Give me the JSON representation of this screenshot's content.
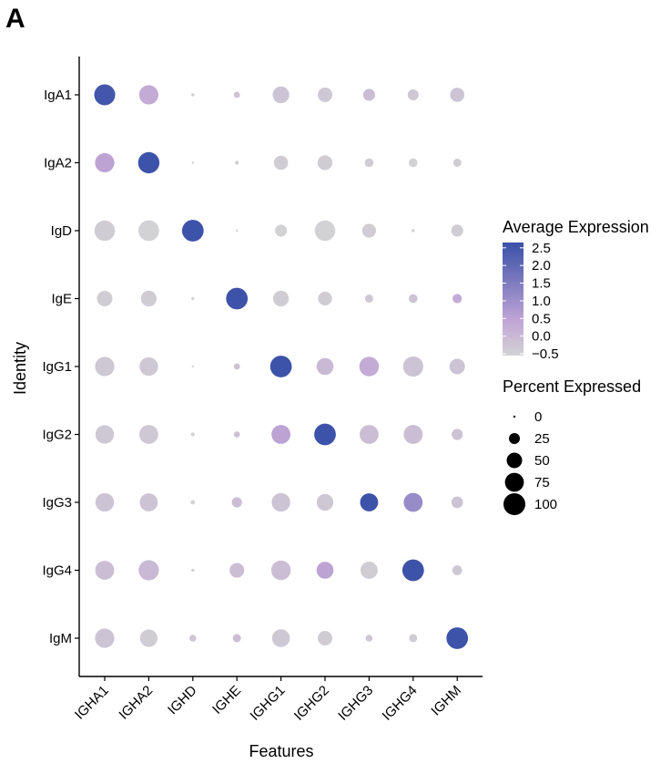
{
  "panel_label": "A",
  "chart_data": {
    "type": "dotplot",
    "xlabel": "Features",
    "ylabel": "Identity",
    "features": [
      "IGHA1",
      "IGHA2",
      "IGHD",
      "IGHE",
      "IGHG1",
      "IGHG2",
      "IGHG3",
      "IGHG4",
      "IGHM"
    ],
    "identities": [
      "IgA1",
      "IgA2",
      "IgD",
      "IgE",
      "IgG1",
      "IgG2",
      "IgG3",
      "IgG4",
      "IgM"
    ],
    "avg_expression": [
      [
        2.5,
        0.3,
        -0.5,
        -0.2,
        -0.2,
        -0.3,
        -0.1,
        -0.3,
        -0.2
      ],
      [
        0.5,
        2.6,
        -0.5,
        -0.4,
        -0.4,
        -0.4,
        -0.4,
        -0.5,
        -0.4
      ],
      [
        -0.4,
        -0.5,
        2.6,
        -0.5,
        -0.5,
        -0.5,
        -0.4,
        -0.5,
        -0.4
      ],
      [
        -0.4,
        -0.4,
        -0.5,
        2.6,
        -0.4,
        -0.4,
        -0.3,
        -0.2,
        0.3
      ],
      [
        -0.3,
        -0.3,
        -0.5,
        -0.2,
        2.6,
        0.0,
        0.3,
        -0.2,
        -0.2
      ],
      [
        -0.3,
        -0.3,
        -0.5,
        -0.2,
        0.5,
        2.6,
        -0.1,
        -0.1,
        -0.2
      ],
      [
        -0.2,
        -0.2,
        -0.5,
        -0.1,
        -0.2,
        -0.3,
        2.6,
        1.1,
        -0.2
      ],
      [
        -0.1,
        0.0,
        -0.5,
        -0.1,
        -0.1,
        0.5,
        -0.4,
        2.6,
        -0.3
      ],
      [
        -0.2,
        -0.4,
        -0.3,
        -0.1,
        -0.3,
        -0.4,
        -0.3,
        -0.4,
        2.6
      ]
    ],
    "pct_expressed": [
      [
        92,
        78,
        2,
        8,
        58,
        44,
        30,
        25,
        42
      ],
      [
        78,
        95,
        1,
        3,
        42,
        46,
        16,
        16,
        14
      ],
      [
        88,
        90,
        98,
        1,
        30,
        88,
        40,
        2,
        30
      ],
      [
        50,
        52,
        2,
        98,
        52,
        40,
        14,
        16,
        18
      ],
      [
        78,
        72,
        1,
        8,
        98,
        60,
        80,
        85,
        50
      ],
      [
        72,
        75,
        3,
        8,
        75,
        98,
        75,
        76,
        26
      ],
      [
        72,
        68,
        4,
        22,
        72,
        58,
        68,
        75,
        28
      ],
      [
        75,
        86,
        2,
        45,
        80,
        60,
        62,
        98,
        20
      ],
      [
        78,
        64,
        10,
        14,
        66,
        44,
        10,
        14,
        98
      ]
    ],
    "color_legend": {
      "title": "Average Expression",
      "ticks": [
        "2.5",
        "2.0",
        "1.5",
        "1.0",
        "0.5",
        "0.0",
        "−0.5"
      ],
      "tick_values": [
        2.5,
        2.0,
        1.5,
        1.0,
        0.5,
        0.0,
        -0.5
      ],
      "range": [
        -0.55,
        2.65
      ],
      "low_color": "#d3d3d3",
      "mid_color": "#c1a6d6",
      "high_color": "#3a50a8"
    },
    "size_legend": {
      "title": "Percent Expressed",
      "labels": [
        "0",
        "25",
        "50",
        "75",
        "100"
      ],
      "values": [
        0,
        25,
        50,
        75,
        100
      ]
    }
  }
}
